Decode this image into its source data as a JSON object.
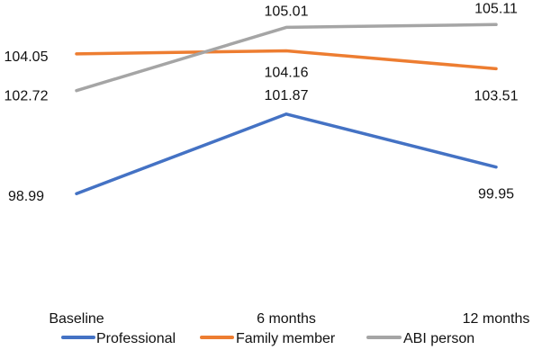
{
  "chart_data": {
    "type": "line",
    "categories": [
      "Baseline",
      "6 months",
      "12 months"
    ],
    "y_range": [
      96,
      106
    ],
    "grid": false,
    "legend_position": "bottom",
    "series": [
      {
        "name": "Professional",
        "color": "#4472C4",
        "values": [
          98.99,
          101.87,
          99.95
        ],
        "data_labels": [
          "98.99",
          "101.87",
          "99.95"
        ]
      },
      {
        "name": "Family member",
        "color": "#ED7D31",
        "values": [
          104.05,
          104.16,
          103.51
        ],
        "data_labels": [
          "104.05",
          "104.16",
          "103.51"
        ]
      },
      {
        "name": "ABI person",
        "color": "#A5A5A5",
        "values": [
          102.72,
          105.01,
          105.11
        ],
        "data_labels": [
          "102.72",
          "105.01",
          "105.11"
        ]
      }
    ]
  }
}
